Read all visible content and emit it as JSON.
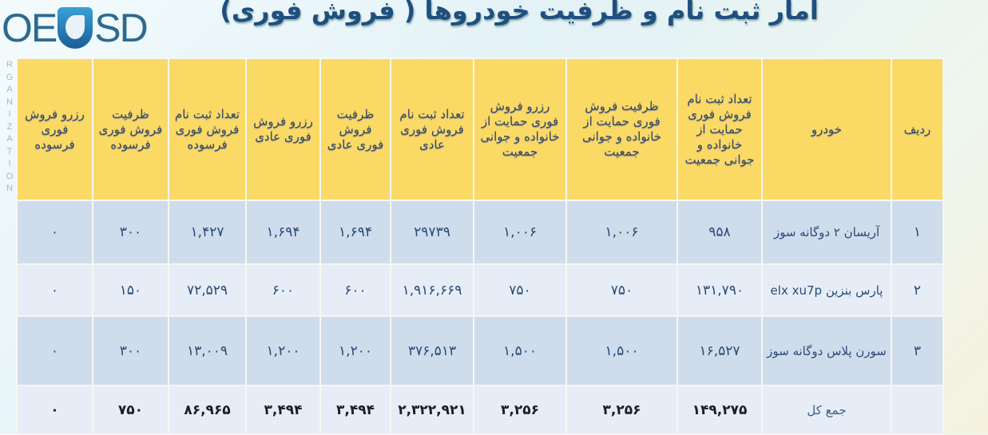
{
  "logo": {
    "text_left": "OE",
    "text_right": "SD",
    "side_letters": [
      "R",
      "G",
      "A",
      "N",
      "I",
      "Z",
      "A",
      "T",
      "I",
      "O",
      "N"
    ]
  },
  "title": "آمار ثبت نام و ظرفیت خودروها ( فروش فوری)",
  "colors": {
    "header_bg": "#fad965",
    "row_dark": "#cfdceb",
    "row_light": "#e6edf6",
    "title": "#1f4f80"
  },
  "table": {
    "headers": [
      "ردیف",
      "خودرو",
      "تعداد ثبت نام فروش فوری حمایت از خانواده و جوانی جمعیت",
      "ظرفیت فروش فوری حمایت از خانواده و جوانی جمعیت",
      "رزرو فروش فوری حمایت از خانواده و جوانی جمعیت",
      "تعداد ثبت نام فروش فوری عادی",
      "ظرفیت فروش فوری عادی",
      "رزرو فروش فوری عادی",
      "تعداد ثبت نام فروش فوری فرسوده",
      "ظرفیت فروش فوری فرسوده",
      "رزرو فروش فوری فرسوده"
    ],
    "rows": [
      [
        "۱",
        "آریسان ۲ دوگانه سوز",
        "۹۵۸",
        "۱,۰۰۶",
        "۱,۰۰۶",
        "۲۹۷۳۹",
        "۱,۶۹۴",
        "۱,۶۹۴",
        "۱,۴۲۷",
        "۳۰۰",
        "۰"
      ],
      [
        "۲",
        "پارس بنزین elx xu7p",
        "۱۳۱,۷۹۰",
        "۷۵۰",
        "۷۵۰",
        "۱,۹۱۶,۶۶۹",
        "۶۰۰",
        "۶۰۰",
        "۷۲,۵۲۹",
        "۱۵۰",
        "۰"
      ],
      [
        "۳",
        "سورن پلاس دوگانه سوز",
        "۱۶,۵۲۷",
        "۱,۵۰۰",
        "۱,۵۰۰",
        "۳۷۶,۵۱۳",
        "۱,۲۰۰",
        "۱,۲۰۰",
        "۱۳,۰۰۹",
        "۳۰۰",
        "۰"
      ]
    ],
    "total": [
      "",
      "جمع کل",
      "۱۴۹,۲۷۵",
      "۳,۲۵۶",
      "۳,۲۵۶",
      "۲,۳۲۲,۹۲۱",
      "۳,۴۹۴",
      "۳,۴۹۴",
      "۸۶,۹۶۵",
      "۷۵۰",
      "۰"
    ]
  }
}
